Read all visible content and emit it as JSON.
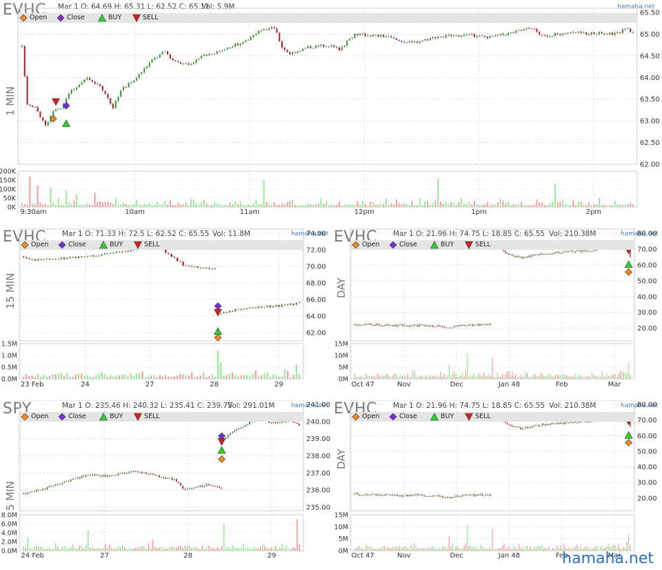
{
  "brand": "hamaha.net",
  "watermark": "hamaha.net",
  "legend": {
    "open": "Open",
    "close": "Close",
    "buy": "BUY",
    "sell": "SELL"
  },
  "colors": {
    "up": "#2f9a2f",
    "down": "#b02020",
    "vol_up": "#9be89b",
    "vol_down": "#f0a0a0",
    "open": "#ef8a1c",
    "close": "#7a2ed8",
    "buy": "#2fd12f",
    "sell": "#d12020",
    "grid": "#d0d0d0",
    "legend_bg": "#e4e4e4"
  },
  "panels": [
    {
      "ticker": "EVHC",
      "timeframe": "1 MIN",
      "ohlc": "Mar 1 O: 64.69 H: 65.31 L: 62.52 C: 65.11",
      "volume": "Vol: 5.9M",
      "brand": "hamaha.net",
      "chart_data": {
        "type": "candlestick",
        "price_ticks": [
          "65.50",
          "65.00",
          "64.50",
          "64.00",
          "63.50",
          "63.00",
          "62.50",
          "62.00"
        ],
        "price_range": [
          62.0,
          65.5
        ],
        "volume_ticks": [
          "200K",
          "150K",
          "100K",
          "50K",
          "0K"
        ],
        "volume_range": [
          0,
          200000
        ],
        "x_labels": [
          "9:30am",
          "10am",
          "11am",
          "12pm",
          "1pm",
          "2pm"
        ],
        "price_path": [
          [
            0,
            64.7
          ],
          [
            2,
            63.4
          ],
          [
            5,
            63.3
          ],
          [
            9,
            62.9
          ],
          [
            12,
            63.2
          ],
          [
            15,
            63.3
          ],
          [
            19,
            63.7
          ],
          [
            25,
            64.0
          ],
          [
            30,
            63.8
          ],
          [
            35,
            63.3
          ],
          [
            38,
            63.7
          ],
          [
            44,
            64.0
          ],
          [
            50,
            64.4
          ],
          [
            55,
            64.6
          ],
          [
            58,
            64.4
          ],
          [
            64,
            64.3
          ],
          [
            70,
            64.5
          ],
          [
            80,
            64.7
          ],
          [
            88,
            64.9
          ],
          [
            92,
            65.1
          ],
          [
            97,
            65.15
          ],
          [
            100,
            64.7
          ],
          [
            103,
            64.55
          ],
          [
            110,
            64.7
          ],
          [
            118,
            64.75
          ],
          [
            122,
            64.65
          ],
          [
            128,
            65.0
          ],
          [
            133,
            64.98
          ],
          [
            140,
            64.95
          ],
          [
            145,
            64.85
          ],
          [
            150,
            64.8
          ],
          [
            160,
            64.95
          ],
          [
            170,
            64.98
          ],
          [
            180,
            64.93
          ],
          [
            190,
            65.05
          ],
          [
            196,
            65.15
          ],
          [
            200,
            64.95
          ],
          [
            210,
            65.03
          ],
          [
            222,
            65.02
          ],
          [
            228,
            65.0
          ],
          [
            232,
            65.12
          ],
          [
            235,
            65.05
          ]
        ],
        "n_bars": 235,
        "volume_spikes": [
          [
            3,
            170000
          ],
          [
            6,
            120000
          ],
          [
            11,
            110000
          ],
          [
            17,
            90000
          ],
          [
            21,
            70000
          ],
          [
            28,
            80000
          ],
          [
            36,
            50000
          ],
          [
            44,
            40000
          ],
          [
            70,
            40000
          ],
          [
            93,
            150000
          ],
          [
            160,
            160000
          ],
          [
            205,
            130000
          ]
        ],
        "markers": [
          {
            "type": "sell",
            "bar": 13,
            "price": 63.45
          },
          {
            "type": "close",
            "bar": 17,
            "price": 63.35
          },
          {
            "type": "buy",
            "bar": 17,
            "price": 62.93
          },
          {
            "type": "open",
            "bar": 12,
            "price": 63.05
          }
        ]
      }
    },
    {
      "ticker": "EVHC",
      "timeframe": "15 MIN",
      "ohlc": "Mar 1 O: 71.33 H: 72.5 L: 62.52 C: 65.55",
      "volume": "Vol: 11.8M",
      "brand": "hamaha.net",
      "chart_data": {
        "type": "candlestick",
        "price_ticks": [
          "74.00",
          "72.00",
          "70.00",
          "68.00",
          "66.00",
          "64.00",
          "62.00"
        ],
        "price_range": [
          61.0,
          74.0
        ],
        "volume_ticks": [
          "1.5M",
          "1.0M",
          "0.5M",
          "0.0M"
        ],
        "volume_range": [
          0,
          1500000
        ],
        "x_labels": [
          "23 Feb",
          "24",
          "27",
          "28",
          "29"
        ],
        "price_path": [
          [
            0,
            71.2
          ],
          [
            3,
            70.8
          ],
          [
            8,
            70.9
          ],
          [
            15,
            71.0
          ],
          [
            22,
            71.2
          ],
          [
            30,
            71.6
          ],
          [
            38,
            72.0
          ],
          [
            46,
            72.4
          ],
          [
            50,
            71.5
          ],
          [
            55,
            70.2
          ],
          [
            62,
            69.8
          ],
          [
            66,
            69.6
          ],
          [
            67,
            64.2
          ],
          [
            70,
            64.5
          ],
          [
            75,
            64.9
          ],
          [
            82,
            65.1
          ],
          [
            90,
            65.3
          ],
          [
            95,
            65.55
          ]
        ],
        "gaps": [
          [
            66,
            67
          ]
        ],
        "n_bars": 95,
        "volume_spikes": [
          [
            67,
            1200000
          ],
          [
            68,
            700000
          ],
          [
            94,
            600000
          ],
          [
            90,
            400000
          ]
        ],
        "markers": [
          {
            "type": "close",
            "bar": 67,
            "price": 65.2
          },
          {
            "type": "sell",
            "bar": 67,
            "price": 64.5
          },
          {
            "type": "buy",
            "bar": 67,
            "price": 62.1
          },
          {
            "type": "open",
            "bar": 67,
            "price": 61.4
          }
        ]
      }
    },
    {
      "ticker": "EVHC",
      "timeframe": "DAY",
      "ohlc": "Mar 1 O: 21.96 H: 74.75 L: 18.85 C: 65.55",
      "volume": "Vol: 210.38M",
      "brand": "hamaha.net",
      "chart_data": {
        "type": "candlestick",
        "price_ticks": [
          "80.00",
          "70.00",
          "60.00",
          "50.00",
          "40.00",
          "30.00",
          "20.00"
        ],
        "price_range": [
          12.0,
          80.0
        ],
        "volume_ticks": [
          "15M",
          "10M",
          "5M",
          "0M"
        ],
        "volume_range": [
          0,
          15000000
        ],
        "x_labels": [
          "Oct 47",
          "Nov",
          "Dec",
          "Jan 48",
          "Feb",
          "Mar"
        ],
        "price_path": [
          [
            0,
            22.5
          ],
          [
            10,
            22.2
          ],
          [
            25,
            21.8
          ],
          [
            40,
            21.7
          ],
          [
            50,
            21.5
          ],
          [
            58,
            20.5
          ],
          [
            62,
            21.2
          ],
          [
            70,
            21.8
          ],
          [
            80,
            22.3
          ],
          [
            82,
            22.0
          ],
          [
            83,
            70.0
          ],
          [
            86,
            72.5
          ],
          [
            92,
            67.0
          ],
          [
            100,
            64.5
          ],
          [
            110,
            66.5
          ],
          [
            125,
            68.0
          ],
          [
            140,
            69.0
          ],
          [
            150,
            70.5
          ],
          [
            160,
            71.5
          ],
          [
            165,
            72.5
          ],
          [
            166,
            65.5
          ]
        ],
        "gaps": [
          [
            82,
            83
          ]
        ],
        "n_bars": 166,
        "volume_spikes": [
          [
            83,
            9000000
          ],
          [
            57,
            6000000
          ],
          [
            68,
            11000000
          ],
          [
            25,
            2000000
          ],
          [
            165,
            7000000
          ]
        ],
        "markers": [
          {
            "type": "close",
            "bar": 165,
            "price": 72.5
          },
          {
            "type": "sell",
            "bar": 165,
            "price": 69.5
          },
          {
            "type": "buy",
            "bar": 165,
            "price": 60.0
          },
          {
            "type": "open",
            "bar": 165,
            "price": 55.5
          }
        ]
      }
    },
    {
      "ticker": "SPY",
      "timeframe": "5 MIN",
      "ohlc": "Mar 1 O: 235.46 H: 240.32 L: 235.41 C: 239.75",
      "volume": "Vol: 291.01M",
      "brand": "hamaha.net",
      "chart_data": {
        "type": "candlestick",
        "price_ticks": [
          "241.00",
          "240.00",
          "239.00",
          "238.00",
          "237.00",
          "236.00",
          "235.00"
        ],
        "price_range": [
          234.8,
          241.0
        ],
        "volume_ticks": [
          "8.0M",
          "6.0M",
          "4.0M",
          "2.0M",
          "0.0M"
        ],
        "volume_range": [
          0,
          8000000
        ],
        "x_labels": [
          "24 Feb",
          "27",
          "28",
          "29"
        ],
        "price_path": [
          [
            0,
            235.8
          ],
          [
            10,
            236.1
          ],
          [
            20,
            236.5
          ],
          [
            30,
            236.9
          ],
          [
            40,
            236.8
          ],
          [
            50,
            237.1
          ],
          [
            60,
            236.9
          ],
          [
            70,
            236.6
          ],
          [
            75,
            236.0
          ],
          [
            85,
            236.3
          ],
          [
            92,
            236.1
          ],
          [
            93,
            239.0
          ],
          [
            100,
            239.6
          ],
          [
            108,
            240.2
          ],
          [
            116,
            239.9
          ],
          [
            124,
            240.1
          ],
          [
            128,
            239.75
          ]
        ],
        "gaps": [
          [
            92,
            93
          ]
        ],
        "n_bars": 128,
        "volume_spikes": [
          [
            2,
            3000000
          ],
          [
            30,
            4500000
          ],
          [
            60,
            2500000
          ],
          [
            93,
            6000000
          ],
          [
            127,
            7000000
          ]
        ],
        "markers": [
          {
            "type": "close",
            "bar": 92,
            "price": 239.15
          },
          {
            "type": "sell",
            "bar": 92,
            "price": 238.85
          },
          {
            "type": "buy",
            "bar": 92,
            "price": 238.3
          },
          {
            "type": "open",
            "bar": 92,
            "price": 237.8
          }
        ]
      }
    },
    {
      "ticker": "EVHC",
      "timeframe": "DAY",
      "ohlc": "Mar 1 O: 21.96 H: 74.75 L: 18.85 C: 65.55",
      "volume": "Vol: 210.38M",
      "brand": "hamaha.net",
      "chart_data": {
        "type": "candlestick",
        "price_ticks": [
          "80.00",
          "70.00",
          "60.00",
          "50.00",
          "40.00",
          "30.00",
          "20.00"
        ],
        "price_range": [
          12.0,
          80.0
        ],
        "volume_ticks": [
          "15M",
          "10M",
          "5M",
          "0M"
        ],
        "volume_range": [
          0,
          15000000
        ],
        "x_labels": [
          "Oct 47",
          "Nov",
          "Dec",
          "Jan 48",
          "Feb",
          "Mar"
        ],
        "price_path": [
          [
            0,
            22.5
          ],
          [
            10,
            22.2
          ],
          [
            25,
            21.8
          ],
          [
            40,
            21.7
          ],
          [
            50,
            21.5
          ],
          [
            58,
            20.5
          ],
          [
            62,
            21.2
          ],
          [
            70,
            21.8
          ],
          [
            80,
            22.3
          ],
          [
            82,
            22.0
          ],
          [
            83,
            70.0
          ],
          [
            86,
            72.5
          ],
          [
            92,
            67.0
          ],
          [
            100,
            64.5
          ],
          [
            110,
            66.5
          ],
          [
            125,
            68.0
          ],
          [
            140,
            69.0
          ],
          [
            150,
            70.5
          ],
          [
            160,
            71.5
          ],
          [
            165,
            72.5
          ],
          [
            166,
            65.5
          ]
        ],
        "gaps": [
          [
            82,
            83
          ]
        ],
        "n_bars": 166,
        "volume_spikes": [
          [
            83,
            9000000
          ],
          [
            57,
            6000000
          ],
          [
            68,
            11000000
          ],
          [
            25,
            2000000
          ],
          [
            165,
            7000000
          ]
        ],
        "markers": [
          {
            "type": "close",
            "bar": 165,
            "price": 72.5
          },
          {
            "type": "sell",
            "bar": 165,
            "price": 69.5
          },
          {
            "type": "buy",
            "bar": 165,
            "price": 60.0
          },
          {
            "type": "open",
            "bar": 165,
            "price": 55.5
          }
        ]
      }
    }
  ]
}
